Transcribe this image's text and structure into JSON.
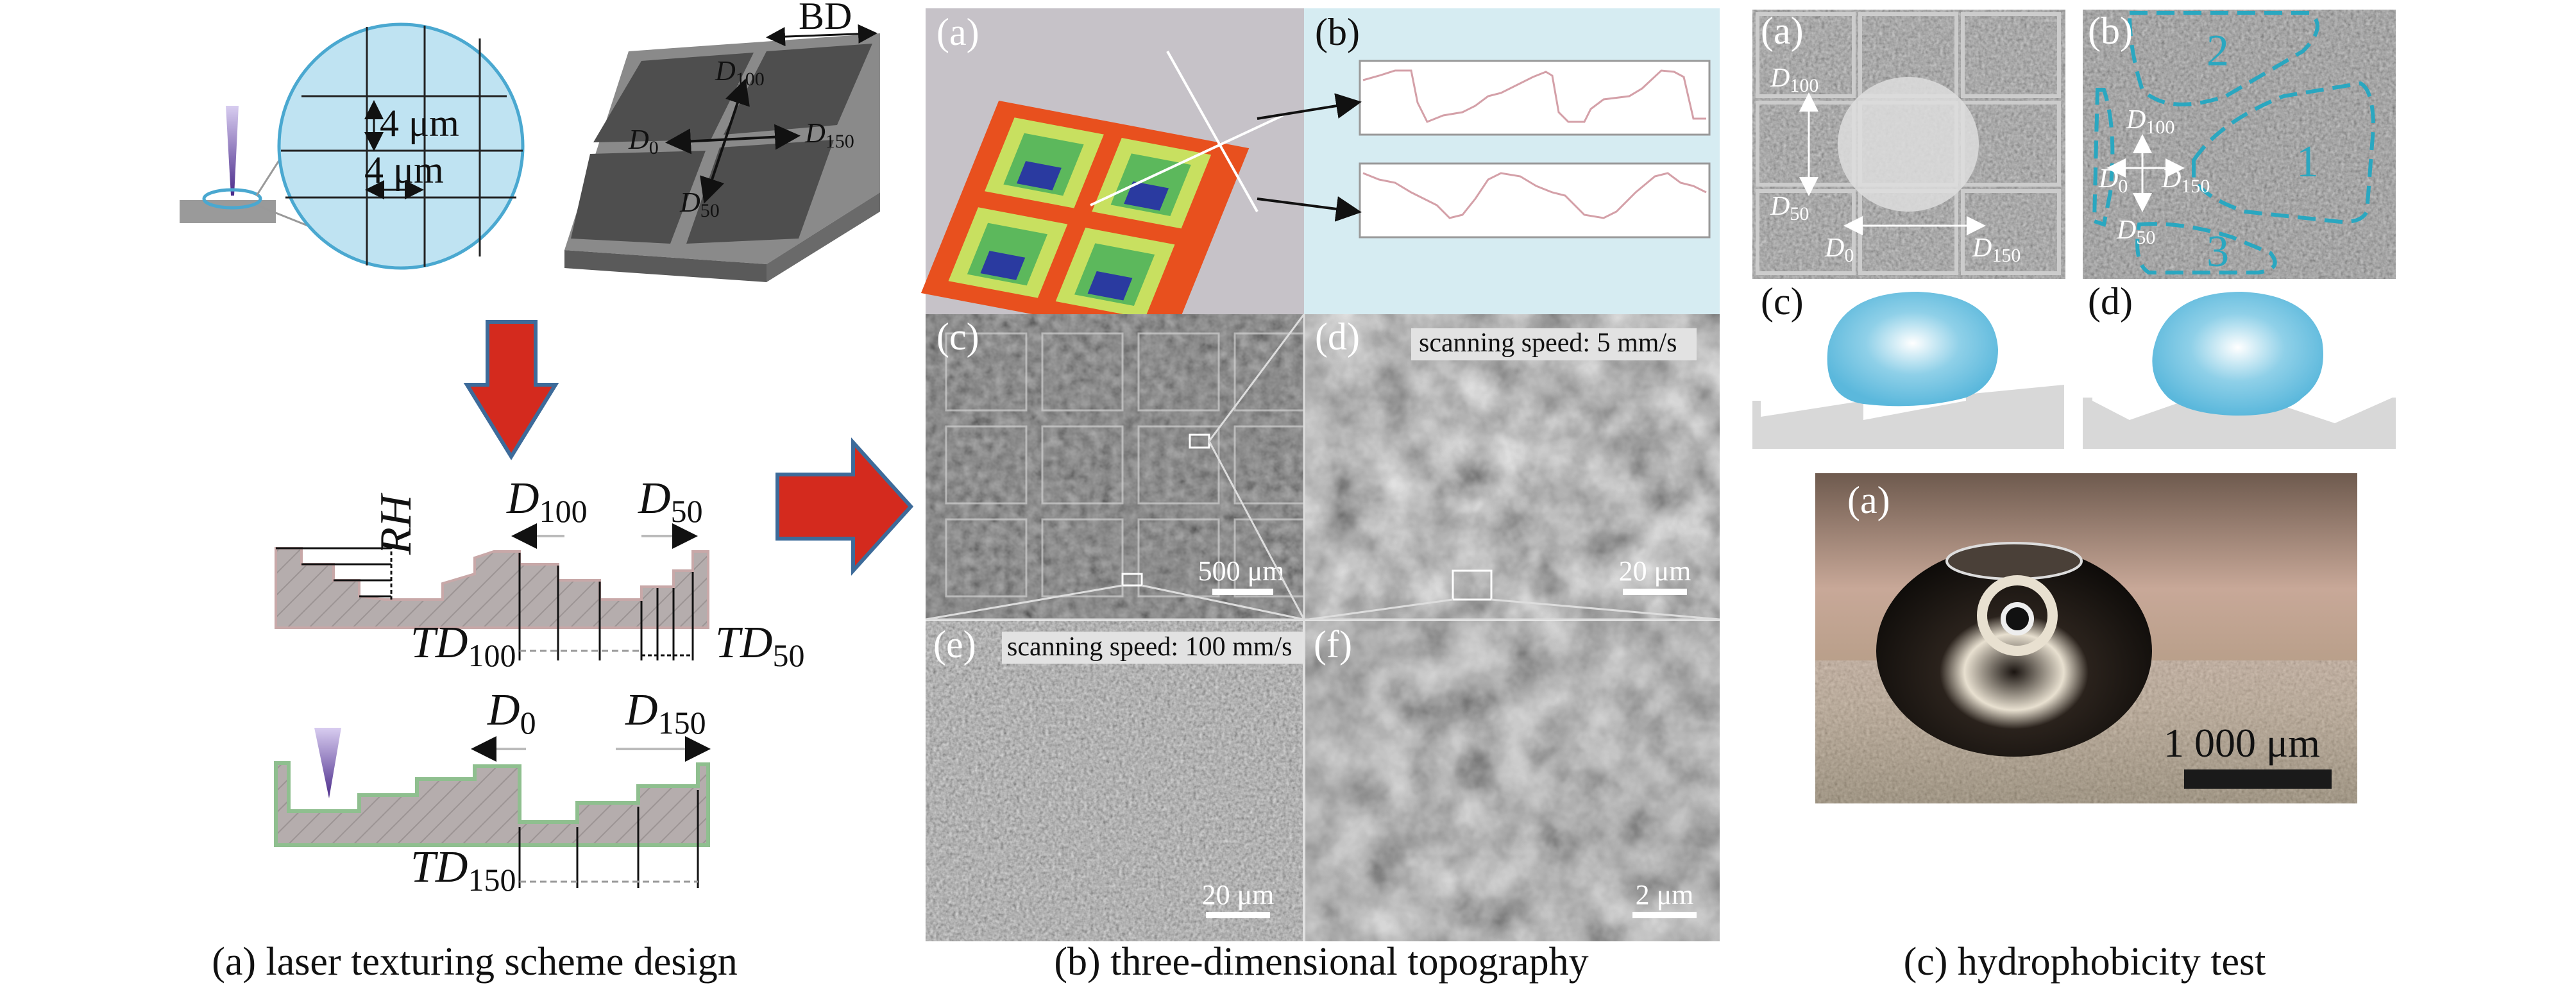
{
  "panel_a": {
    "caption": "(a) laser texturing scheme design",
    "grid_label_v": "4 μm",
    "grid_label_h": "4 μm",
    "block_label": "BD",
    "block_dirs": [
      {
        "main": "D",
        "sub": "100"
      },
      {
        "main": "D",
        "sub": "0"
      },
      {
        "main": "D",
        "sub": "150"
      },
      {
        "main": "D",
        "sub": "50"
      }
    ],
    "profile1": {
      "rh": "RH",
      "left_dir": {
        "main": "D",
        "sub": "100"
      },
      "right_dir": {
        "main": "D",
        "sub": "50"
      },
      "left_td": {
        "main": "TD",
        "sub": "100"
      },
      "right_td": {
        "main": "TD",
        "sub": "50"
      }
    },
    "profile2": {
      "left_dir": {
        "main": "D",
        "sub": "0"
      },
      "right_dir": {
        "main": "D",
        "sub": "150"
      },
      "td": {
        "main": "TD",
        "sub": "150"
      }
    },
    "colors": {
      "arrow": "#d42a1e",
      "arrow_border": "#3d6b9a",
      "circle": "#bfe3f2",
      "profile_top_2": "#8fbf8f",
      "laser": "#5a3a9a"
    }
  },
  "panel_b": {
    "caption": "(b) three-dimensional topography",
    "sub": {
      "a": "(a)",
      "b": "(b)",
      "c": "(c)",
      "d": "(d)",
      "e": "(e)",
      "f": "(f)"
    },
    "scale_c": "500 μm",
    "scale_d": "20 μm",
    "scale_e": "20 μm",
    "scale_f": "2 μm",
    "speed_d": "scanning speed: 5 mm/s",
    "speed_e": "scanning speed: 100 mm/s"
  },
  "panel_c": {
    "caption": "(c) hydrophobicity test",
    "sub": {
      "a": "(a)",
      "b": "(b)",
      "c": "(c)",
      "d": "(d)",
      "a2": "(a)"
    },
    "dirs_a": [
      {
        "main": "D",
        "sub": "100"
      },
      {
        "main": "D",
        "sub": "50"
      },
      {
        "main": "D",
        "sub": "0"
      },
      {
        "main": "D",
        "sub": "150"
      }
    ],
    "dirs_b": [
      {
        "main": "D",
        "sub": "100"
      },
      {
        "main": "D",
        "sub": "0"
      },
      {
        "main": "D",
        "sub": "150"
      },
      {
        "main": "D",
        "sub": "50"
      }
    ],
    "regions": [
      "1",
      "2",
      "3"
    ],
    "scale_photo": "1 000 μm",
    "colors": {
      "drop": "#5bb8dc",
      "region_outline": "#2aa7c0"
    }
  }
}
